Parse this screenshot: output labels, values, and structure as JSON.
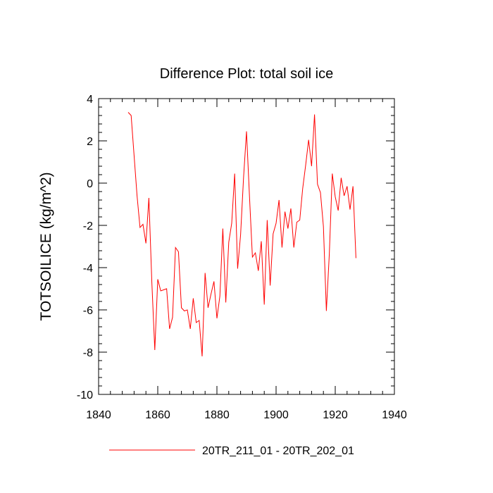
{
  "chart_data": {
    "type": "line",
    "title": "Difference Plot: total soil ice",
    "xlabel": "",
    "ylabel": "TOTSOILICE  (kg/m^2)",
    "xlim": [
      1840,
      1940
    ],
    "ylim": [
      -10,
      4
    ],
    "xticks": [
      1840,
      1860,
      1880,
      1900,
      1920,
      1940
    ],
    "yticks": [
      -10,
      -8,
      -6,
      -4,
      -2,
      0,
      2,
      4
    ],
    "x_minor_step": 4,
    "y_minor_step": 0.4,
    "grid": false,
    "legend_position": "bottom",
    "series": [
      {
        "name": "20TR_211_01 - 20TR_202_01",
        "color": "#ff0000",
        "x": [
          1850,
          1851,
          1852,
          1853,
          1854,
          1855,
          1856,
          1857,
          1858,
          1859,
          1860,
          1861,
          1862,
          1863,
          1864,
          1865,
          1866,
          1867,
          1868,
          1869,
          1870,
          1871,
          1872,
          1873,
          1874,
          1875,
          1876,
          1877,
          1878,
          1879,
          1880,
          1881,
          1882,
          1883,
          1884,
          1885,
          1886,
          1887,
          1888,
          1889,
          1890,
          1891,
          1892,
          1893,
          1894,
          1895,
          1896,
          1897,
          1898,
          1899,
          1900,
          1901,
          1902,
          1903,
          1904,
          1905,
          1906,
          1907,
          1908,
          1909,
          1910,
          1911,
          1912,
          1913,
          1914,
          1915,
          1916,
          1917,
          1918,
          1919,
          1920,
          1921,
          1922,
          1923,
          1924,
          1925,
          1926,
          1927
        ],
        "y": [
          3.35,
          3.2,
          1.3,
          -0.6,
          -2.1,
          -1.95,
          -2.85,
          -0.7,
          -4.7,
          -7.9,
          -4.55,
          -5.1,
          -5.05,
          -5.0,
          -6.9,
          -6.35,
          -3.05,
          -3.25,
          -5.9,
          -6.05,
          -6.0,
          -6.9,
          -5.45,
          -6.6,
          -6.5,
          -8.2,
          -4.25,
          -5.9,
          -5.25,
          -4.65,
          -6.4,
          -5.35,
          -2.15,
          -5.65,
          -2.8,
          -1.9,
          0.45,
          -4.05,
          -2.45,
          0.25,
          2.45,
          -0.6,
          -3.5,
          -3.3,
          -4.15,
          -2.75,
          -5.75,
          -1.75,
          -4.85,
          -2.4,
          -1.9,
          -0.8,
          -3.05,
          -1.35,
          -2.15,
          -1.2,
          -3.05,
          -1.85,
          -1.75,
          -0.25,
          0.85,
          2.05,
          0.8,
          3.25,
          -0.05,
          -0.45,
          -2.05,
          -6.05,
          -3.35,
          0.45,
          -0.65,
          -1.3,
          0.25,
          -0.6,
          -0.15,
          -1.25,
          -0.15,
          -3.55
        ]
      }
    ]
  }
}
